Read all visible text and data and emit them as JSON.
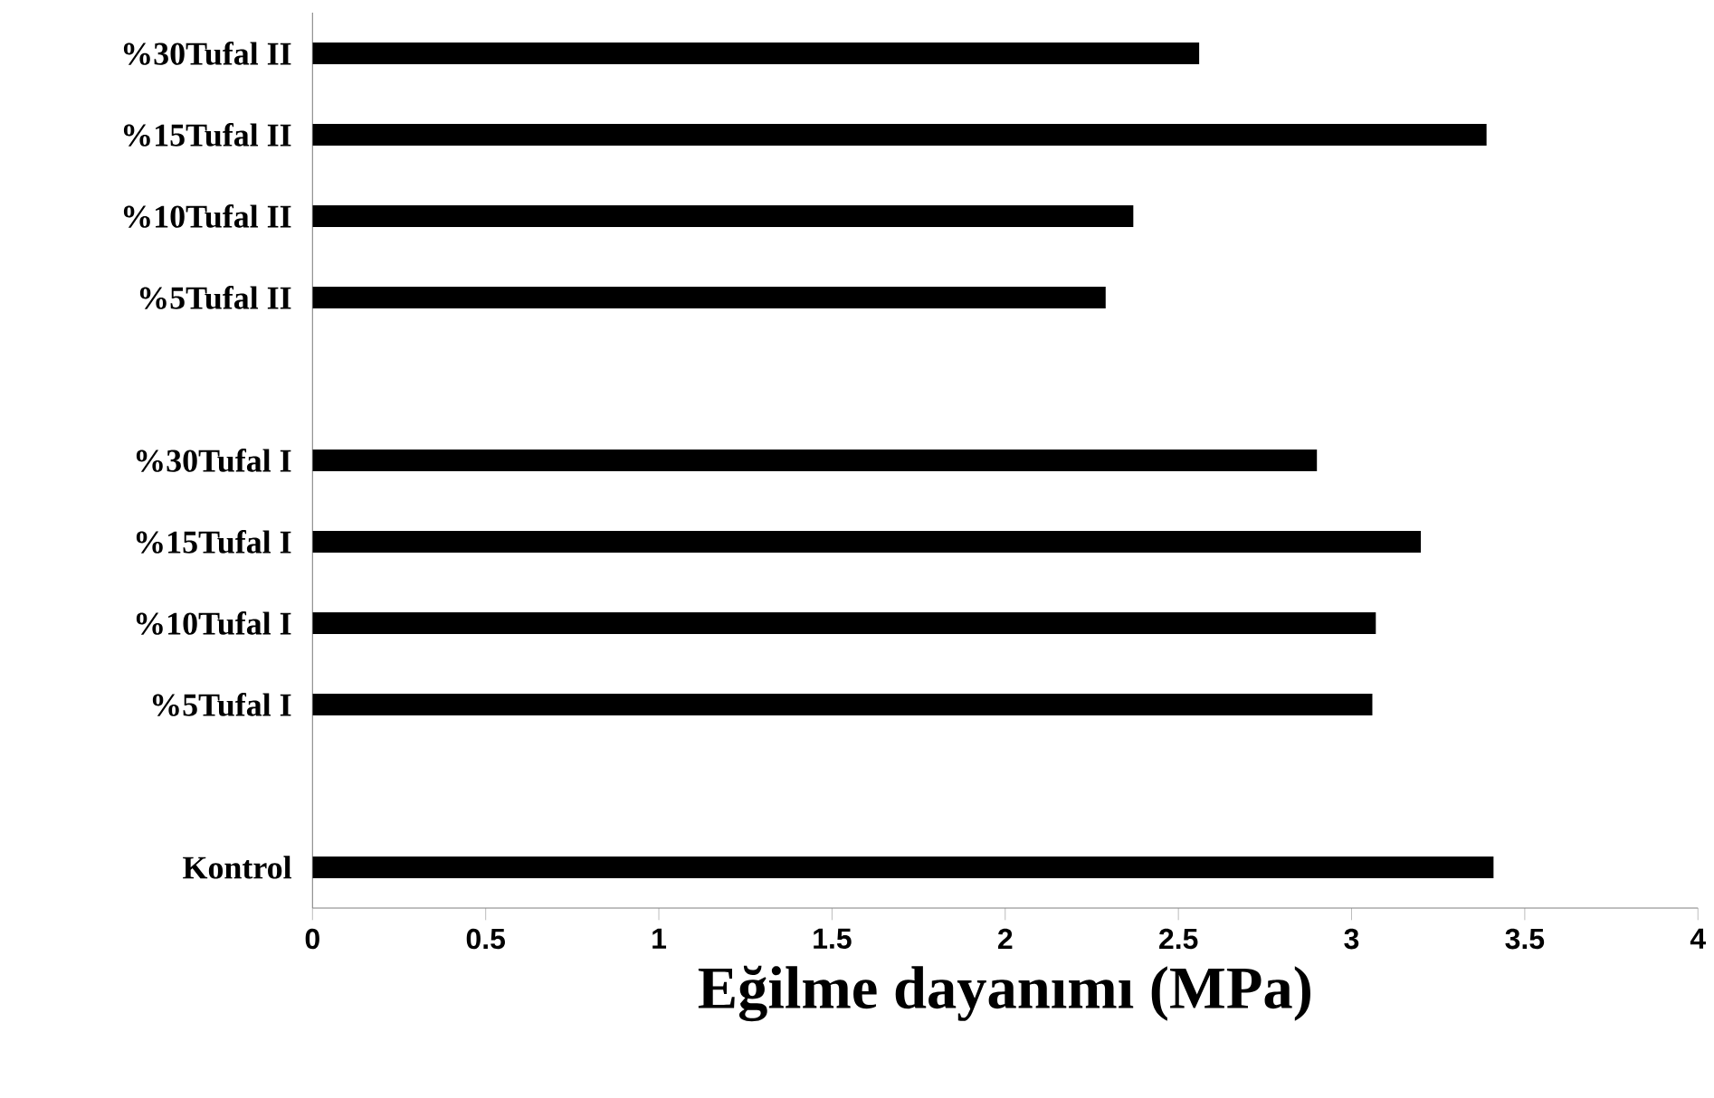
{
  "chart_data": {
    "type": "bar",
    "orientation": "horizontal",
    "xlabel": "Eğilme dayanımı (MPa)",
    "categories": [
      "%30Tufal II",
      "%15Tufal II",
      "%10Tufal II",
      "%5Tufal II",
      null,
      "%30Tufal I",
      "%15Tufal I",
      "%10Tufal I",
      "%5Tufal I",
      null,
      "Kontrol"
    ],
    "values": [
      2.56,
      3.39,
      2.37,
      2.29,
      null,
      2.9,
      3.2,
      3.07,
      3.06,
      null,
      3.41
    ],
    "color": "#000000",
    "xlim": [
      0,
      4
    ],
    "xticks": [
      0,
      0.5,
      1,
      1.5,
      2,
      2.5,
      3,
      3.5,
      4
    ],
    "grid": false
  }
}
